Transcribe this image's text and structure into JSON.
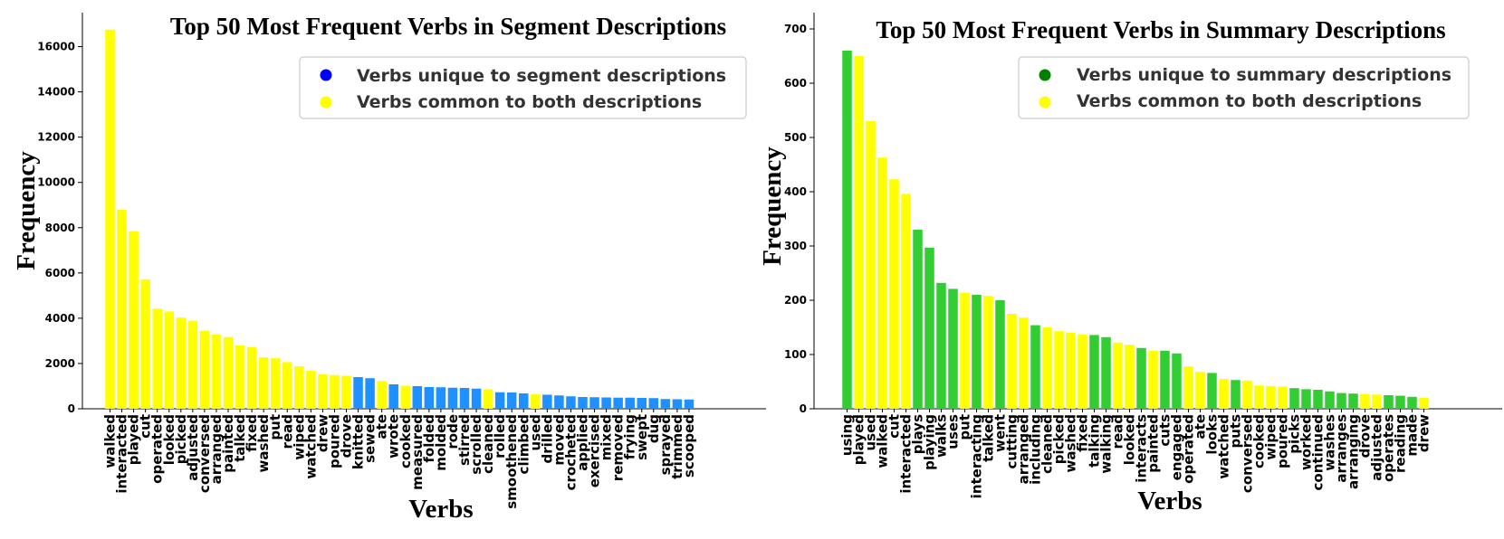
{
  "chart_data": [
    {
      "type": "bar",
      "title": "Top 50 Most Frequent Verbs in Segment Descriptions",
      "xlabel": "Verbs",
      "ylabel": "Frequency",
      "ylim": [
        0,
        17500
      ],
      "yticks": [
        0,
        2000,
        4000,
        6000,
        8000,
        10000,
        12000,
        14000,
        16000
      ],
      "legend": {
        "position": "top-right",
        "entries": [
          {
            "label": "Verbs unique to segment descriptions",
            "color": "#0000ff"
          },
          {
            "label": "Verbs common to both descriptions",
            "color": "#ffff00"
          }
        ]
      },
      "colors": {
        "common": "#ffff00",
        "unique": "#1e90ff"
      },
      "categories": [
        "walked",
        "interacted",
        "played",
        "cut",
        "operated",
        "looked",
        "picked",
        "adjusted",
        "conversed",
        "arranged",
        "painted",
        "talked",
        "fixed",
        "washed",
        "put",
        "read",
        "wiped",
        "watched",
        "drew",
        "poured",
        "drove",
        "knitted",
        "sewed",
        "ate",
        "wrote",
        "cooked",
        "measured",
        "folded",
        "molded",
        "rode",
        "stirred",
        "scrolled",
        "cleaned",
        "rolled",
        "smoothened",
        "climbed",
        "used",
        "drilled",
        "moved",
        "crocheted",
        "applied",
        "exercised",
        "mixed",
        "removed",
        "frying",
        "swept",
        "dug",
        "sprayed",
        "trimmed",
        "scooped"
      ],
      "values": [
        16750,
        8800,
        7850,
        5720,
        4420,
        4300,
        4030,
        3890,
        3450,
        3280,
        3170,
        2800,
        2730,
        2270,
        2230,
        2060,
        1880,
        1680,
        1520,
        1490,
        1460,
        1400,
        1350,
        1220,
        1080,
        1020,
        1000,
        960,
        950,
        930,
        920,
        890,
        860,
        730,
        720,
        680,
        640,
        620,
        590,
        550,
        520,
        510,
        500,
        490,
        490,
        480,
        470,
        430,
        420,
        410
      ],
      "unique": [
        "knitted",
        "sewed",
        "wrote",
        "measured",
        "folded",
        "molded",
        "rode",
        "stirred",
        "scrolled",
        "rolled",
        "smoothened",
        "climbed",
        "drilled",
        "moved",
        "crocheted",
        "applied",
        "exercised",
        "mixed",
        "removed",
        "frying",
        "swept",
        "dug",
        "sprayed",
        "trimmed",
        "scooped"
      ]
    },
    {
      "type": "bar",
      "title": "Top 50 Most Frequent Verbs in Summary Descriptions",
      "xlabel": "Verbs",
      "ylabel": "Frequency",
      "ylim": [
        0,
        730
      ],
      "yticks": [
        0,
        100,
        200,
        300,
        400,
        500,
        600,
        700
      ],
      "legend": {
        "position": "top-right",
        "entries": [
          {
            "label": "Verbs unique to summary descriptions",
            "color": "#008000"
          },
          {
            "label": "Verbs common to both descriptions",
            "color": "#ffff00"
          }
        ]
      },
      "colors": {
        "common": "#ffff00",
        "unique": "#32cd32"
      },
      "categories": [
        "using",
        "played",
        "used",
        "walked",
        "cut",
        "interacted",
        "plays",
        "playing",
        "walks",
        "uses",
        "put",
        "interacting",
        "talked",
        "went",
        "cutting",
        "arranged",
        "including",
        "cleaned",
        "picked",
        "washed",
        "fixed",
        "talking",
        "walking",
        "read",
        "looked",
        "interacts",
        "painted",
        "cuts",
        "engaged",
        "operated",
        "ate",
        "looks",
        "watched",
        "puts",
        "conversed",
        "cooked",
        "wiped",
        "poured",
        "picks",
        "worked",
        "continued",
        "washes",
        "arranges",
        "arranging",
        "drove",
        "adjusted",
        "operates",
        "reading",
        "made",
        "drew"
      ],
      "values": [
        660,
        650,
        530,
        463,
        423,
        396,
        330,
        297,
        232,
        221,
        214,
        210,
        208,
        200,
        175,
        168,
        154,
        150,
        143,
        140,
        137,
        136,
        132,
        122,
        118,
        112,
        107,
        107,
        102,
        78,
        68,
        66,
        55,
        53,
        52,
        43,
        42,
        41,
        38,
        36,
        35,
        32,
        29,
        28,
        27,
        26,
        25,
        24,
        22,
        20
      ],
      "unique": [
        "using",
        "plays",
        "playing",
        "walks",
        "uses",
        "interacting",
        "went",
        "including",
        "talking",
        "walking",
        "interacts",
        "cuts",
        "engaged",
        "looks",
        "puts",
        "picks",
        "worked",
        "continued",
        "washes",
        "arranges",
        "arranging",
        "operates",
        "reading",
        "made"
      ]
    }
  ]
}
